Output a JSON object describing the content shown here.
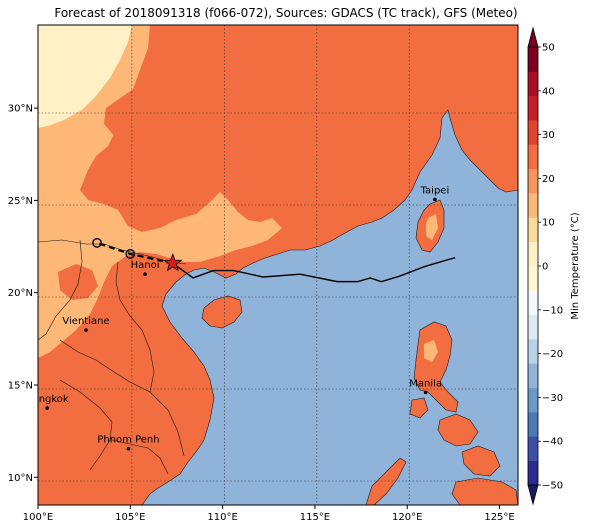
{
  "title": "Forecast of 2018091318 (f066-072), Sources: GDACS (TC track), GFS (Meteo)",
  "map": {
    "lon_ticks": [
      "100°E",
      "105°E",
      "110°E",
      "115°E",
      "120°E",
      "125°E"
    ],
    "lat_ticks": [
      "10°N",
      "15°N",
      "20°N",
      "25°N",
      "30°N"
    ],
    "lon_range": [
      100,
      126
    ],
    "lat_range": [
      8.5,
      34.5
    ],
    "colors": {
      "ocean": "#8fb3d9",
      "land_warm": "#f26d3f",
      "land_mild": "#fdb877",
      "land_cool": "#fff0c6",
      "coast": "#1a1a1a",
      "track": "#000000",
      "storm": "#d7191c"
    },
    "cities": [
      {
        "name": "Taipei",
        "lon": 121.5,
        "lat": 25.05
      },
      {
        "name": "Hanoi",
        "lon": 105.8,
        "lat": 21.0
      },
      {
        "name": "Vientiane",
        "lon": 102.6,
        "lat": 17.97
      },
      {
        "name": "Manila",
        "lon": 121.0,
        "lat": 14.6
      },
      {
        "name": "Bangkok",
        "lon": 100.5,
        "lat": 13.75
      },
      {
        "name": "Phnom Penh",
        "lon": 104.9,
        "lat": 11.55
      }
    ],
    "track_past": [
      [
        122.6,
        21.9
      ],
      [
        121.9,
        21.7
      ],
      [
        120.9,
        21.4
      ],
      [
        119.6,
        20.9
      ],
      [
        118.6,
        20.6
      ],
      [
        118.0,
        20.8
      ],
      [
        117.3,
        20.6
      ],
      [
        116.2,
        20.6
      ],
      [
        114.2,
        21.0
      ],
      [
        112.2,
        20.85
      ],
      [
        110.6,
        21.2
      ],
      [
        109.5,
        21.2
      ],
      [
        108.4,
        20.8
      ],
      [
        107.3,
        21.6
      ]
    ],
    "track_forecast": [
      [
        107.3,
        21.6
      ],
      [
        105.0,
        22.1
      ],
      [
        103.2,
        22.7
      ]
    ],
    "forecast_points": [
      [
        105.0,
        22.1
      ],
      [
        103.2,
        22.7
      ]
    ],
    "storm_position": [
      107.3,
      21.6
    ]
  },
  "colorbar": {
    "label": "Min Temperature (°C)",
    "ticks": [
      50,
      40,
      30,
      20,
      10,
      0,
      -10,
      -20,
      -30,
      -40,
      -50
    ],
    "tick_labels": [
      "50",
      "40",
      "30",
      "20",
      "10",
      "0",
      "−10",
      "−20",
      "−30",
      "−40",
      "−50"
    ],
    "range": [
      -50,
      50
    ],
    "colors": [
      "#2c2c8f",
      "#3e4fa5",
      "#4d79b5",
      "#6b9ac8",
      "#8fb3d9",
      "#b8d2e8",
      "#dcebf3",
      "#f3f9fb",
      "#fdf6cf",
      "#fff0c6",
      "#fdd99a",
      "#fdb877",
      "#f8955a",
      "#f26d3f",
      "#e2432d",
      "#c71f2a",
      "#a80f25",
      "#7d0021"
    ]
  }
}
